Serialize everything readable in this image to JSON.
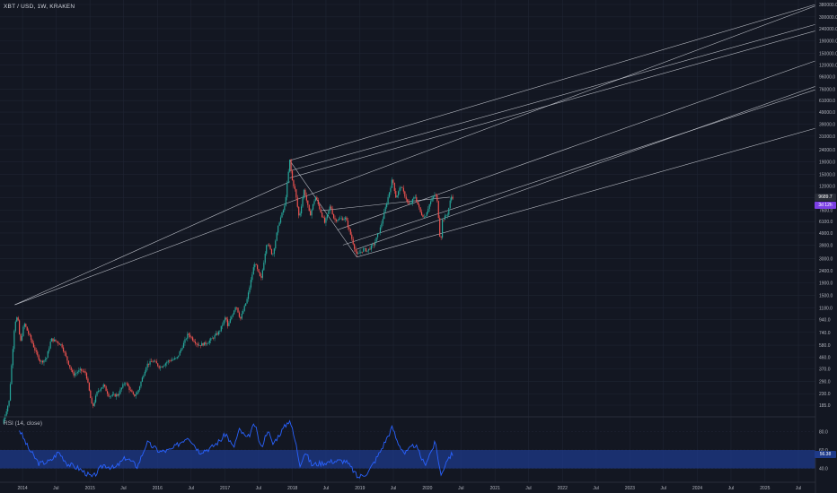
{
  "header": {
    "symbol_label": "XBT / USD, 1W, KRAKEN"
  },
  "rsi_panel": {
    "label": "RSI (14, close)",
    "value_tag": "56.38",
    "band": [
      40,
      60
    ]
  },
  "price_tags": {
    "last_price": "9689.7",
    "countdown": "3d 12h"
  },
  "colors": {
    "background": "#131722",
    "grid": "#1f2533",
    "up": "#26a69a",
    "down": "#ef5350",
    "trend_lines": "#d1d4dc",
    "rsi_line": "#2962ff",
    "rsi_band": "#1e3a8a",
    "price_tag": "#2a2e39",
    "countdown_tag": "#7b3fe4"
  },
  "chart_data": [
    {
      "type": "candlestick",
      "title": "XBT / USD, 1W, KRAKEN",
      "y_scale": "log",
      "price_axis_ticks": [
        185.0,
        230.0,
        290.0,
        370.0,
        460.0,
        580.0,
        740.0,
        940.0,
        1180.0,
        1500.0,
        1900.0,
        2400.0,
        3000.0,
        3900.0,
        4900.0,
        6100.0,
        7600.0,
        9600.0,
        12000.0,
        15000.0,
        19000.0,
        24000.0,
        31000.0,
        39000.0,
        49000.0,
        61000.0,
        76000.0,
        96000.0,
        120000.0,
        150000.0,
        190000.0,
        240000.0,
        300000.0,
        380000.0
      ],
      "time_axis_labels": [
        "2014",
        "Jul",
        "2015",
        "Jul",
        "2016",
        "Jul",
        "2017",
        "Jul",
        "2018",
        "Jul",
        "2019",
        "Jul",
        "2020",
        "Jul",
        "2021",
        "Jul",
        "2022",
        "Jul",
        "2023",
        "Jul",
        "2024",
        "Jul",
        "2025",
        "Jul"
      ],
      "x_range": [
        "2013-09",
        "2025-10"
      ],
      "price_path": [
        [
          "2013-09-15",
          130
        ],
        [
          "2013-10-20",
          200
        ],
        [
          "2013-11-20",
          900
        ],
        [
          "2013-12-05",
          1000
        ],
        [
          "2013-12-20",
          600
        ],
        [
          "2014-01-10",
          880
        ],
        [
          "2014-02-20",
          620
        ],
        [
          "2014-03-20",
          480
        ],
        [
          "2014-04-10",
          420
        ],
        [
          "2014-05-10",
          450
        ],
        [
          "2014-06-05",
          650
        ],
        [
          "2014-07-05",
          620
        ],
        [
          "2014-08-01",
          580
        ],
        [
          "2014-08-20",
          480
        ],
        [
          "2014-10-01",
          330
        ],
        [
          "2014-11-10",
          360
        ],
        [
          "2014-12-10",
          340
        ],
        [
          "2015-01-14",
          175
        ],
        [
          "2015-02-10",
          240
        ],
        [
          "2015-03-15",
          270
        ],
        [
          "2015-04-15",
          220
        ],
        [
          "2015-06-01",
          225
        ],
        [
          "2015-07-10",
          290
        ],
        [
          "2015-08-25",
          220
        ],
        [
          "2015-09-15",
          235
        ],
        [
          "2015-11-04",
          400
        ],
        [
          "2015-12-10",
          430
        ],
        [
          "2016-01-15",
          380
        ],
        [
          "2016-03-01",
          430
        ],
        [
          "2016-04-15",
          450
        ],
        [
          "2016-06-15",
          720
        ],
        [
          "2016-07-10",
          650
        ],
        [
          "2016-08-10",
          580
        ],
        [
          "2016-09-20",
          600
        ],
        [
          "2016-10-20",
          650
        ],
        [
          "2016-12-01",
          750
        ],
        [
          "2017-01-05",
          1000
        ],
        [
          "2017-01-15",
          820
        ],
        [
          "2017-03-01",
          1250
        ],
        [
          "2017-03-25",
          950
        ],
        [
          "2017-05-01",
          1400
        ],
        [
          "2017-06-10",
          2800
        ],
        [
          "2017-07-15",
          2000
        ],
        [
          "2017-08-15",
          4200
        ],
        [
          "2017-09-15",
          3200
        ],
        [
          "2017-10-20",
          6000
        ],
        [
          "2017-11-20",
          8200
        ],
        [
          "2017-12-17",
          19500
        ],
        [
          "2017-12-30",
          13500
        ],
        [
          "2018-01-15",
          11000
        ],
        [
          "2018-02-06",
          6500
        ],
        [
          "2018-03-05",
          11300
        ],
        [
          "2018-04-05",
          6800
        ],
        [
          "2018-05-05",
          9800
        ],
        [
          "2018-06-25",
          5900
        ],
        [
          "2018-07-25",
          8300
        ],
        [
          "2018-08-15",
          6300
        ],
        [
          "2018-10-15",
          6500
        ],
        [
          "2018-11-20",
          4300
        ],
        [
          "2018-12-15",
          3200
        ],
        [
          "2019-01-20",
          3600
        ],
        [
          "2019-02-10",
          3500
        ],
        [
          "2019-03-20",
          4000
        ],
        [
          "2019-04-20",
          5300
        ],
        [
          "2019-05-20",
          8000
        ],
        [
          "2019-06-26",
          13800
        ],
        [
          "2019-07-15",
          9600
        ],
        [
          "2019-08-10",
          12000
        ],
        [
          "2019-09-25",
          8200
        ],
        [
          "2019-10-26",
          9900
        ],
        [
          "2019-11-25",
          7200
        ],
        [
          "2019-12-17",
          6600
        ],
        [
          "2020-01-15",
          8700
        ],
        [
          "2020-02-13",
          10400
        ],
        [
          "2020-02-25",
          8600
        ],
        [
          "2020-03-12",
          3850
        ],
        [
          "2020-03-20",
          6200
        ],
        [
          "2020-04-20",
          7100
        ],
        [
          "2020-05-08",
          9800
        ],
        [
          "2020-05-20",
          9690
        ]
      ],
      "trend_lines": [
        {
          "from": [
            "2013-11-20",
            1250
          ],
          "to": [
            "2025-10-01",
            370000
          ]
        },
        {
          "from": [
            "2013-11-20",
            1250
          ],
          "to": [
            "2017-12-17",
            13000
          ]
        },
        {
          "from": [
            "2017-12-17",
            19500
          ],
          "to": [
            "2018-12-15",
            3100
          ]
        },
        {
          "from": [
            "2017-12-17",
            19500
          ],
          "to": [
            "2025-10-01",
            380000
          ]
        },
        {
          "from": [
            "2017-12-17",
            16000
          ],
          "to": [
            "2025-10-01",
            260000
          ]
        },
        {
          "from": [
            "2017-12-17",
            14000
          ],
          "to": [
            "2025-10-01",
            230000
          ]
        },
        {
          "from": [
            "2018-12-15",
            3100
          ],
          "to": [
            "2025-10-01",
            36000
          ]
        },
        {
          "from": [
            "2018-09-01",
            5200
          ],
          "to": [
            "2025-10-01",
            130000
          ]
        },
        {
          "from": [
            "2018-12-15",
            3600
          ],
          "to": [
            "2025-10-01",
            80000
          ]
        },
        {
          "from": [
            "2018-10-01",
            3900
          ],
          "to": [
            "2025-10-01",
            75000
          ]
        },
        {
          "from": [
            "2018-06-01",
            7500
          ],
          "to": [
            "2020-05-01",
            9700
          ]
        }
      ]
    },
    {
      "type": "line",
      "title": "RSI (14, close)",
      "y_ticks": [
        40.0,
        60.0,
        80.0
      ],
      "y_range": [
        25,
        95
      ],
      "band": [
        40,
        60
      ],
      "series": [
        {
          "name": "RSI (14, close)",
          "x": [
            "2013-12-15",
            "2014-02-01",
            "2014-04-01",
            "2014-06-01",
            "2014-07-15",
            "2014-09-01",
            "2014-11-01",
            "2015-01-15",
            "2015-03-15",
            "2015-05-15",
            "2015-07-15",
            "2015-09-15",
            "2015-11-05",
            "2016-01-15",
            "2016-03-15",
            "2016-06-15",
            "2016-08-15",
            "2016-10-15",
            "2016-12-15",
            "2017-01-05",
            "2017-02-15",
            "2017-03-20",
            "2017-05-01",
            "2017-06-10",
            "2017-07-15",
            "2017-08-20",
            "2017-09-15",
            "2017-11-01",
            "2017-12-17",
            "2018-01-20",
            "2018-02-10",
            "2018-03-10",
            "2018-04-15",
            "2018-06-15",
            "2018-08-15",
            "2018-10-15",
            "2018-11-25",
            "2018-12-20",
            "2019-02-15",
            "2019-04-15",
            "2019-06-26",
            "2019-07-20",
            "2019-09-01",
            "2019-10-26",
            "2019-12-17",
            "2020-02-13",
            "2020-03-15",
            "2020-04-15",
            "2020-05-20"
          ],
          "values": [
            82,
            62,
            45,
            48,
            58,
            45,
            40,
            30,
            44,
            40,
            52,
            42,
            68,
            58,
            60,
            75,
            58,
            62,
            72,
            78,
            62,
            82,
            72,
            88,
            62,
            82,
            66,
            80,
            93,
            66,
            44,
            58,
            44,
            46,
            48,
            48,
            38,
            30,
            36,
            56,
            85,
            70,
            56,
            66,
            44,
            68,
            32,
            50,
            56.38
          ]
        }
      ]
    }
  ]
}
